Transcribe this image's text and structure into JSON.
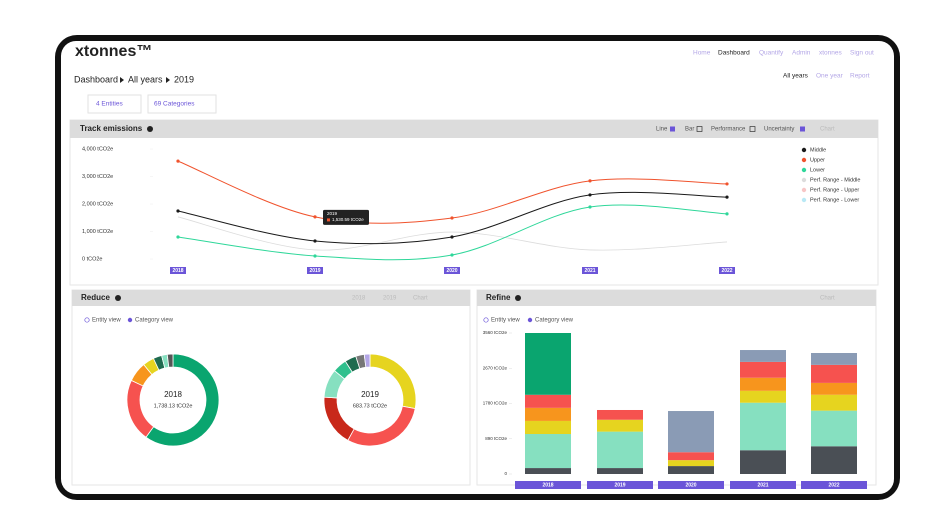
{
  "brand": "xtonnes™",
  "nav": [
    "Home",
    "Dashboard",
    "Quantify",
    "Admin",
    "xtonnes",
    "Sign out"
  ],
  "breadcrumb": [
    "Dashboard",
    "All years",
    "2019"
  ],
  "period": [
    "All years",
    "One year",
    "Report"
  ],
  "filters": [
    "4 Entities",
    "69 Categories"
  ],
  "track": {
    "title": "Track emissions",
    "toggles": [
      "Line",
      "Bar",
      "Performance",
      "Uncertainty"
    ],
    "dropdown": "Chart"
  },
  "reduce": {
    "title": "Reduce",
    "years": [
      "2018",
      "2019"
    ],
    "dropdown": "Chart",
    "views": [
      "Entity view",
      "Category view"
    ]
  },
  "refine": {
    "title": "Refine",
    "dropdown": "Chart",
    "views": [
      "Entity view",
      "Category view"
    ]
  },
  "chart_data": [
    {
      "type": "line",
      "categories": [
        "2018",
        "2019",
        "2020",
        "2021",
        "2022"
      ],
      "ylim": [
        0,
        4000
      ],
      "yticks": [
        {
          "value": 0,
          "label": "0 tCO2e"
        },
        {
          "value": 1000,
          "label": "1,000 tCO2e"
        },
        {
          "value": 2000,
          "label": "2,000 tCO2e"
        },
        {
          "value": 3000,
          "label": "3,000 tCO2e"
        },
        {
          "value": 4000,
          "label": "4,000 tCO2e"
        }
      ],
      "tooltip": {
        "title": "2019",
        "text": "1,530.59 tCO2e"
      },
      "legend": "right",
      "series": [
        {
          "name": "Middle",
          "color": "#1a1a1a",
          "values": [
            1745,
            655,
            800,
            2330,
            2250
          ]
        },
        {
          "name": "Upper",
          "color": "#f0532d",
          "values": [
            3560,
            1530.59,
            1490,
            2840,
            2730
          ]
        },
        {
          "name": "Lower",
          "color": "#2fd79a",
          "values": [
            800,
            110,
            145,
            1890,
            1640
          ]
        },
        {
          "name": "Perf. Range - Middle",
          "color": "#dcdcdc",
          "values": [
            1530,
            330,
            980,
            330,
            620
          ]
        },
        {
          "name": "Perf. Range - Upper",
          "color": "#f7c6c6",
          "values": [
            null,
            null,
            null,
            null,
            null
          ]
        },
        {
          "name": "Perf. Range - Lower",
          "color": "#b9e9f5",
          "values": [
            null,
            null,
            null,
            null,
            null
          ]
        }
      ]
    },
    {
      "type": "donut",
      "title": "2018",
      "subtitle": "1,738.13 tCO2e",
      "values": [
        60,
        22,
        7,
        4,
        3,
        2,
        2
      ],
      "colors": [
        "#0aa56f",
        "#f6524f",
        "#f7951d",
        "#e6d41f",
        "#1f6b4f",
        "#86e0c0",
        "#555555"
      ]
    },
    {
      "type": "donut",
      "title": "2019",
      "subtitle": "683.73 tCO2e",
      "values": [
        28,
        30,
        18,
        10,
        5,
        4,
        3,
        2
      ],
      "colors": [
        "#e6d41f",
        "#f6524f",
        "#c8281a",
        "#86e0c0",
        "#2fc08d",
        "#1f6b4f",
        "#777777",
        "#b3a6e6"
      ]
    },
    {
      "type": "stacked_bar",
      "categories": [
        "2018",
        "2019",
        "2020",
        "2021",
        "2022"
      ],
      "ylim": [
        0,
        3560
      ],
      "yticks": [
        0,
        {
          "value": 890,
          "label": "890 tCO2e"
        },
        {
          "value": 1780,
          "label": "1780 tCO2e"
        },
        {
          "value": 2670,
          "label": "2670 tCO2e"
        },
        {
          "value": 3560,
          "label": "3560 tCO2e"
        }
      ],
      "series": [
        {
          "color": "#4a4f55",
          "values": [
            150,
            150,
            200,
            600,
            700
          ]
        },
        {
          "color": "#86e0c0",
          "values": [
            860,
            920,
            0,
            1200,
            900
          ]
        },
        {
          "color": "#e6d41f",
          "values": [
            330,
            300,
            150,
            300,
            400
          ]
        },
        {
          "color": "#f7951d",
          "values": [
            330,
            0,
            0,
            330,
            300
          ]
        },
        {
          "color": "#f6524f",
          "values": [
            330,
            246,
            200,
            400,
            455
          ]
        },
        {
          "color": "#0aa56f",
          "values": [
            1560,
            0,
            0,
            0,
            0
          ]
        },
        {
          "color": "#8a9bb5",
          "values": [
            0,
            0,
            1040,
            300,
            300
          ]
        }
      ]
    }
  ]
}
